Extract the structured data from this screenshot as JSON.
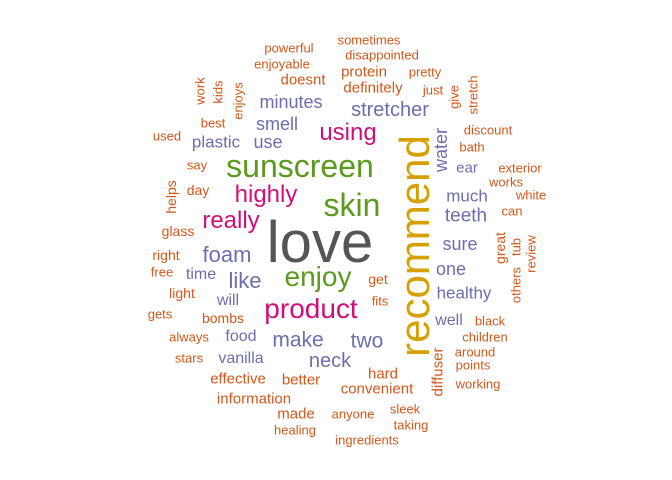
{
  "colors": {
    "dark": "#555555",
    "gold": "#D6A100",
    "green": "#5B9A1E",
    "magenta": "#D10F7A",
    "purple": "#6E6DB0",
    "orange": "#D2581B"
  },
  "words": [
    {
      "text": "love",
      "color": "dark"
    },
    {
      "text": "recommend",
      "color": "gold"
    },
    {
      "text": "sunscreen",
      "color": "green"
    },
    {
      "text": "skin",
      "color": "green"
    },
    {
      "text": "enjoy",
      "color": "green"
    },
    {
      "text": "product",
      "color": "magenta"
    },
    {
      "text": "highly",
      "color": "magenta"
    },
    {
      "text": "really",
      "color": "magenta"
    },
    {
      "text": "using",
      "color": "magenta"
    },
    {
      "text": "foam",
      "color": "purple"
    },
    {
      "text": "like",
      "color": "purple"
    },
    {
      "text": "make",
      "color": "purple"
    },
    {
      "text": "two",
      "color": "purple"
    },
    {
      "text": "neck",
      "color": "purple"
    },
    {
      "text": "stretcher",
      "color": "purple"
    },
    {
      "text": "minutes",
      "color": "purple"
    },
    {
      "text": "smell",
      "color": "purple"
    },
    {
      "text": "plastic",
      "color": "purple"
    },
    {
      "text": "use",
      "color": "purple"
    },
    {
      "text": "teeth",
      "color": "purple"
    },
    {
      "text": "sure",
      "color": "purple"
    },
    {
      "text": "one",
      "color": "purple"
    },
    {
      "text": "healthy",
      "color": "purple"
    },
    {
      "text": "much",
      "color": "purple"
    },
    {
      "text": "water",
      "color": "purple"
    },
    {
      "text": "time",
      "color": "purple"
    },
    {
      "text": "will",
      "color": "purple"
    },
    {
      "text": "food",
      "color": "purple"
    },
    {
      "text": "vanilla",
      "color": "purple"
    },
    {
      "text": "well",
      "color": "purple"
    },
    {
      "text": "ear",
      "color": "purple"
    },
    {
      "text": "sometimes",
      "color": "orange"
    },
    {
      "text": "powerful",
      "color": "orange"
    },
    {
      "text": "disappointed",
      "color": "orange"
    },
    {
      "text": "enjoyable",
      "color": "orange"
    },
    {
      "text": "doesnt",
      "color": "orange"
    },
    {
      "text": "protein",
      "color": "orange"
    },
    {
      "text": "pretty",
      "color": "orange"
    },
    {
      "text": "definitely",
      "color": "orange"
    },
    {
      "text": "just",
      "color": "orange"
    },
    {
      "text": "work",
      "color": "orange"
    },
    {
      "text": "kids",
      "color": "orange"
    },
    {
      "text": "enjoys",
      "color": "orange"
    },
    {
      "text": "give",
      "color": "orange"
    },
    {
      "text": "stretch",
      "color": "orange"
    },
    {
      "text": "best",
      "color": "orange"
    },
    {
      "text": "used",
      "color": "orange"
    },
    {
      "text": "discount",
      "color": "orange"
    },
    {
      "text": "bath",
      "color": "orange"
    },
    {
      "text": "say",
      "color": "orange"
    },
    {
      "text": "exterior",
      "color": "orange"
    },
    {
      "text": "works",
      "color": "orange"
    },
    {
      "text": "day",
      "color": "orange"
    },
    {
      "text": "white",
      "color": "orange"
    },
    {
      "text": "helps",
      "color": "orange"
    },
    {
      "text": "can",
      "color": "orange"
    },
    {
      "text": "glass",
      "color": "orange"
    },
    {
      "text": "great",
      "color": "orange"
    },
    {
      "text": "tub",
      "color": "orange"
    },
    {
      "text": "review",
      "color": "orange"
    },
    {
      "text": "right",
      "color": "orange"
    },
    {
      "text": "free",
      "color": "orange"
    },
    {
      "text": "get",
      "color": "orange"
    },
    {
      "text": "others",
      "color": "orange"
    },
    {
      "text": "light",
      "color": "orange"
    },
    {
      "text": "fits",
      "color": "orange"
    },
    {
      "text": "bombs",
      "color": "orange"
    },
    {
      "text": "gets",
      "color": "orange"
    },
    {
      "text": "black",
      "color": "orange"
    },
    {
      "text": "always",
      "color": "orange"
    },
    {
      "text": "children",
      "color": "orange"
    },
    {
      "text": "around",
      "color": "orange"
    },
    {
      "text": "stars",
      "color": "orange"
    },
    {
      "text": "points",
      "color": "orange"
    },
    {
      "text": "hard",
      "color": "orange"
    },
    {
      "text": "effective",
      "color": "orange"
    },
    {
      "text": "better",
      "color": "orange"
    },
    {
      "text": "diffuser",
      "color": "orange"
    },
    {
      "text": "working",
      "color": "orange"
    },
    {
      "text": "convenient",
      "color": "orange"
    },
    {
      "text": "information",
      "color": "orange"
    },
    {
      "text": "made",
      "color": "orange"
    },
    {
      "text": "sleek",
      "color": "orange"
    },
    {
      "text": "anyone",
      "color": "orange"
    },
    {
      "text": "taking",
      "color": "orange"
    },
    {
      "text": "healing",
      "color": "orange"
    },
    {
      "text": "ingredients",
      "color": "orange"
    }
  ]
}
